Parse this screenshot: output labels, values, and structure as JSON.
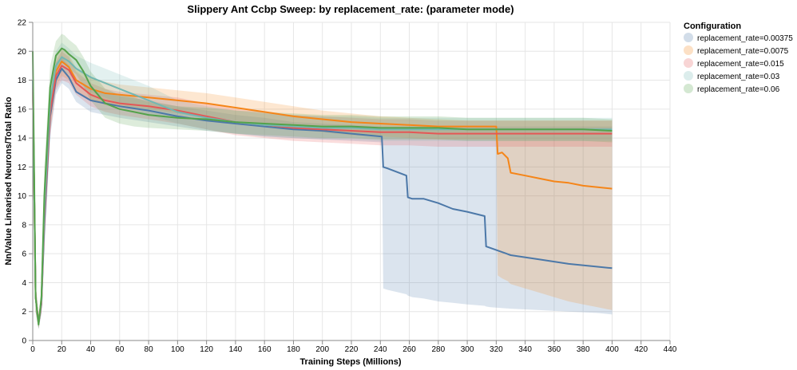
{
  "chart_data": {
    "type": "line",
    "title": "Slippery Ant Ccbp Sweep: by replacement_rate: (parameter mode)",
    "xlabel": "Training Steps (Millions)",
    "ylabel": "Nn/Value Linearised Neurons/Total Ratio",
    "xlim": [
      0,
      440
    ],
    "ylim": [
      0,
      22
    ],
    "x_ticks": [
      "0",
      "20",
      "40",
      "60",
      "80",
      "100",
      "120",
      "140",
      "160",
      "180",
      "200",
      "220",
      "240",
      "260",
      "280",
      "300",
      "320",
      "340",
      "360",
      "380",
      "400",
      "420",
      "440"
    ],
    "y_ticks": [
      "0",
      "2",
      "4",
      "6",
      "8",
      "10",
      "12",
      "14",
      "16",
      "18",
      "20",
      "22"
    ],
    "grid": true,
    "legend": {
      "title": "Configuration",
      "position": "right"
    },
    "series": [
      {
        "name": "replacement_rate=0.00375",
        "color": "#4c78a8",
        "x": [
          0,
          2,
          4,
          6,
          8,
          12,
          16,
          20,
          25,
          30,
          40,
          50,
          60,
          80,
          100,
          120,
          140,
          160,
          180,
          200,
          220,
          241,
          242,
          245,
          258,
          259,
          262,
          270,
          280,
          290,
          300,
          312,
          313,
          316,
          330,
          350,
          370,
          390,
          400
        ],
        "y": [
          18,
          3,
          1.2,
          2.5,
          8,
          15.5,
          18,
          18.8,
          18.2,
          17.2,
          16.6,
          16.4,
          16.2,
          15.9,
          15.5,
          15.2,
          15,
          14.8,
          14.6,
          14.5,
          14.3,
          14.1,
          12,
          11.9,
          11.4,
          9.9,
          9.8,
          9.8,
          9.5,
          9.1,
          8.9,
          8.6,
          6.5,
          6.4,
          5.9,
          5.6,
          5.3,
          5.1,
          5.0
        ],
        "lower": [
          16,
          2,
          0.8,
          1.8,
          6,
          14,
          17,
          17.8,
          17.4,
          16.5,
          15.8,
          15.6,
          15.4,
          15.1,
          14.8,
          14.5,
          14.3,
          14.1,
          14,
          13.9,
          13.8,
          13.7,
          3.6,
          3.5,
          3.2,
          3.1,
          3,
          2.9,
          2.7,
          2.6,
          2.5,
          2.4,
          2.35,
          2.3,
          2.2,
          2.1,
          2.0,
          1.9,
          1.8
        ],
        "upper": [
          20,
          4,
          1.6,
          3.2,
          10,
          17,
          19.2,
          19.6,
          19,
          18,
          17.4,
          17.1,
          16.9,
          16.6,
          16.2,
          15.9,
          15.6,
          15.4,
          15.1,
          15,
          14.9,
          14.8,
          14.8,
          14.8,
          14.8,
          14.8,
          14.8,
          14.8,
          14.8,
          14.8,
          14.8,
          14.8,
          14.8,
          14.8,
          14.8,
          14.8,
          14.8,
          14.8,
          14.8
        ]
      },
      {
        "name": "replacement_rate=0.0075",
        "color": "#f58518",
        "x": [
          0,
          2,
          4,
          6,
          8,
          12,
          16,
          20,
          25,
          30,
          40,
          50,
          60,
          80,
          100,
          120,
          140,
          160,
          180,
          200,
          220,
          240,
          260,
          280,
          300,
          320,
          321,
          324,
          328,
          330,
          340,
          350,
          360,
          370,
          380,
          390,
          400
        ],
        "y": [
          18,
          3,
          1.3,
          2.8,
          9,
          16,
          18.6,
          19.3,
          18.9,
          18,
          17.4,
          17.1,
          17,
          16.8,
          16.6,
          16.4,
          16.1,
          15.8,
          15.5,
          15.3,
          15.1,
          15,
          14.9,
          14.8,
          14.8,
          14.8,
          12.9,
          13,
          12.6,
          11.6,
          11.4,
          11.2,
          11,
          10.9,
          10.7,
          10.6,
          10.5
        ],
        "lower": [
          16,
          2,
          0.9,
          2,
          7,
          14.5,
          17.5,
          18.3,
          18,
          17.2,
          16.6,
          16.3,
          16.2,
          16,
          15.7,
          15.5,
          15.2,
          14.9,
          14.6,
          14.4,
          14.2,
          14.1,
          14,
          13.9,
          13.9,
          13.9,
          4.5,
          4.3,
          4.1,
          3.9,
          3.6,
          3.3,
          3.0,
          2.7,
          2.5,
          2.3,
          2.1
        ],
        "upper": [
          20,
          4,
          1.7,
          3.6,
          11,
          17.5,
          19.6,
          20.2,
          19.8,
          18.8,
          18.2,
          17.9,
          17.7,
          17.5,
          17.3,
          17.1,
          16.8,
          16.5,
          16.2,
          15.9,
          15.7,
          15.5,
          15.4,
          15.3,
          15.2,
          15.2,
          15.2,
          15.2,
          15.2,
          15.2,
          15.2,
          15.2,
          15.2,
          15.2,
          15.2,
          15.2,
          15.2
        ]
      },
      {
        "name": "replacement_rate=0.015",
        "color": "#e45756",
        "x": [
          0,
          2,
          4,
          6,
          8,
          12,
          16,
          20,
          25,
          30,
          40,
          50,
          60,
          80,
          100,
          120,
          140,
          160,
          180,
          200,
          220,
          240,
          260,
          280,
          300,
          320,
          340,
          360,
          380,
          400
        ],
        "y": [
          18,
          3,
          1.2,
          2.6,
          8.5,
          15.8,
          18.3,
          19,
          18.7,
          17.8,
          17,
          16.6,
          16.4,
          16.2,
          15.9,
          15.5,
          15.1,
          14.9,
          14.7,
          14.6,
          14.5,
          14.4,
          14.4,
          14.3,
          14.3,
          14.3,
          14.3,
          14.3,
          14.3,
          14.3
        ],
        "lower": [
          16,
          2,
          0.8,
          1.9,
          6.5,
          14.3,
          17.3,
          18,
          17.8,
          17,
          16.2,
          15.8,
          15.6,
          15.3,
          15,
          14.6,
          14.2,
          14,
          13.8,
          13.7,
          13.6,
          13.5,
          13.5,
          13.4,
          13.4,
          13.4,
          13.4,
          13.4,
          13.4,
          13.4
        ],
        "upper": [
          20,
          4,
          1.6,
          3.3,
          10.5,
          17.3,
          19.3,
          20,
          19.6,
          18.6,
          17.8,
          17.4,
          17.2,
          17,
          16.8,
          16.4,
          16,
          15.8,
          15.6,
          15.5,
          15.4,
          15.3,
          15.3,
          15.2,
          15.2,
          15.2,
          15.2,
          15.2,
          15.2,
          15.2
        ]
      },
      {
        "name": "replacement_rate=0.03",
        "color": "#72b7b2",
        "x": [
          0,
          2,
          4,
          6,
          8,
          12,
          16,
          20,
          25,
          30,
          40,
          50,
          60,
          70,
          80,
          90,
          100,
          120,
          140,
          160,
          180,
          200,
          220,
          240,
          260,
          280,
          300,
          320,
          340,
          360,
          380,
          400
        ],
        "y": [
          18,
          3,
          1.2,
          2.8,
          9,
          16.5,
          19,
          19.6,
          19.3,
          18.8,
          18.2,
          17.8,
          17.4,
          17,
          16.6,
          16.2,
          15.8,
          15.4,
          15.1,
          14.9,
          14.8,
          14.7,
          14.7,
          14.6,
          14.6,
          14.6,
          14.6,
          14.6,
          14.6,
          14.6,
          14.6,
          14.6
        ],
        "lower": [
          16,
          2,
          0.8,
          2,
          7,
          15,
          18,
          18.6,
          18.4,
          17.9,
          17.2,
          16.8,
          16.4,
          16,
          15.6,
          15.3,
          15,
          14.6,
          14.3,
          14.1,
          14,
          13.9,
          13.9,
          13.8,
          13.8,
          13.8,
          13.8,
          13.8,
          13.8,
          13.8,
          13.8,
          13.8
        ],
        "upper": [
          20,
          4,
          1.6,
          3.6,
          11,
          18,
          20,
          20.6,
          20.2,
          19.7,
          19.2,
          18.8,
          18.4,
          18,
          17.6,
          17.1,
          16.6,
          16.2,
          15.9,
          15.7,
          15.6,
          15.5,
          15.5,
          15.4,
          15.4,
          15.4,
          15.4,
          15.4,
          15.4,
          15.4,
          15.4,
          15.4
        ]
      },
      {
        "name": "replacement_rate=0.06",
        "color": "#54a24b",
        "x": [
          0,
          2,
          4,
          6,
          8,
          12,
          16,
          20,
          22,
          25,
          30,
          35,
          40,
          45,
          50,
          60,
          70,
          80,
          100,
          120,
          140,
          160,
          180,
          200,
          220,
          240,
          260,
          280,
          300,
          320,
          340,
          360,
          380,
          400
        ],
        "y": [
          20,
          3,
          1.1,
          3,
          10,
          17.5,
          19.7,
          20.2,
          20.1,
          19.8,
          19.4,
          18.6,
          17.6,
          17,
          16.4,
          16,
          15.8,
          15.6,
          15.4,
          15.3,
          15.1,
          15,
          14.9,
          14.8,
          14.8,
          14.7,
          14.7,
          14.7,
          14.6,
          14.6,
          14.6,
          14.6,
          14.6,
          14.5
        ],
        "lower": [
          18,
          2,
          0.8,
          2.2,
          8,
          16,
          18.7,
          19.2,
          19.1,
          18.8,
          18.4,
          17.6,
          16.6,
          16,
          15.4,
          15,
          14.8,
          14.7,
          14.6,
          14.5,
          14.3,
          14.2,
          14.1,
          14,
          14,
          13.9,
          13.9,
          13.9,
          13.8,
          13.8,
          13.8,
          13.8,
          13.8,
          13.7
        ],
        "upper": [
          21,
          4,
          1.5,
          3.8,
          12,
          19,
          20.7,
          21.2,
          21.1,
          20.8,
          20.4,
          19.6,
          18.6,
          18,
          17.4,
          17,
          16.8,
          16.5,
          16.2,
          16.1,
          15.9,
          15.8,
          15.7,
          15.6,
          15.6,
          15.5,
          15.5,
          15.5,
          15.4,
          15.4,
          15.4,
          15.4,
          15.4,
          15.3
        ]
      }
    ]
  }
}
